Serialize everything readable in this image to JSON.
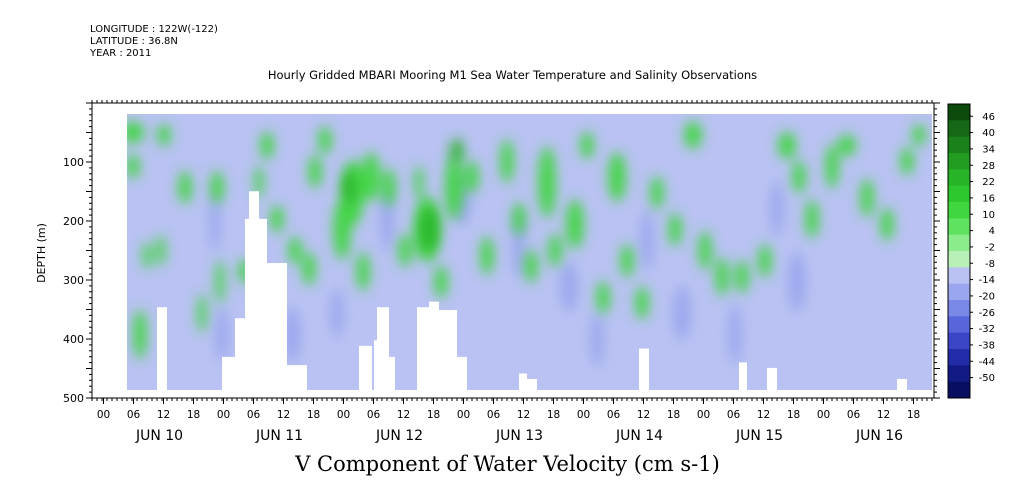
{
  "header": {
    "longitude": "LONGITUDE : 122W(-122)",
    "latitude": "LATITUDE : 36.8N",
    "year": "YEAR : 2011"
  },
  "chart_data": {
    "type": "heatmap",
    "title": "Hourly Gridded MBARI Mooring M1 Sea Water Temperature and Salinity Observations",
    "xlabel": "V Component of Water Velocity (cm s-1)",
    "ylabel": "DEPTH (m)",
    "ylim": [
      500,
      0
    ],
    "y_inverted": true,
    "yticks": [
      100,
      200,
      300,
      400,
      500
    ],
    "x_hour_ticks": [
      "00",
      "06",
      "12",
      "18",
      "00",
      "06",
      "12",
      "18",
      "00",
      "06",
      "12",
      "18",
      "00",
      "06",
      "12",
      "18",
      "00",
      "06",
      "12",
      "18",
      "00",
      "06",
      "12",
      "18",
      "00",
      "06",
      "12",
      "18"
    ],
    "x_day_labels": [
      "JUN 10",
      "JUN 11",
      "JUN 12",
      "JUN 13",
      "JUN 14",
      "JUN 15",
      "JUN 16"
    ],
    "colorbar": {
      "labels": [
        "46",
        "40",
        "34",
        "28",
        "22",
        "16",
        "10",
        "4",
        "-2",
        "-8",
        "-14",
        "-20",
        "-26",
        "-32",
        "-38",
        "-44",
        "-50"
      ],
      "colors": [
        "#0d4a0d",
        "#156815",
        "#1b821b",
        "#219c21",
        "#27b427",
        "#2dc82d",
        "#3fd63f",
        "#5fe25f",
        "#8aec8a",
        "#b8f0b8",
        "#b9c2f2",
        "#9aa6ee",
        "#7a88e8",
        "#5866dc",
        "#3a46c6",
        "#222ca8",
        "#121a86",
        "#080e60"
      ]
    },
    "layers": [
      {
        "name": "bg",
        "value": -10
      },
      {
        "name": "b",
        "value": -18,
        "blobs": [
          [
            88,
            205,
            2.5,
            55
          ],
          [
            95,
            420,
            3,
            50
          ],
          [
            130,
            300,
            2,
            40
          ],
          [
            165,
            420,
            4,
            50
          ],
          [
            210,
            380,
            3,
            45
          ],
          [
            260,
            200,
            3,
            60
          ],
          [
            310,
            430,
            3,
            45
          ],
          [
            335,
            160,
            4,
            50
          ],
          [
            392,
            250,
            3,
            60
          ],
          [
            442,
            330,
            4,
            45
          ],
          [
            470,
            430,
            3,
            50
          ],
          [
            520,
            240,
            3,
            55
          ],
          [
            555,
            380,
            4,
            50
          ],
          [
            608,
            420,
            3,
            55
          ],
          [
            650,
            180,
            3,
            50
          ],
          [
            670,
            320,
            4,
            55
          ]
        ]
      },
      {
        "name": "g",
        "value": 12,
        "blobs": [
          [
            6,
            35,
            5,
            20
          ],
          [
            6,
            100,
            3,
            22
          ],
          [
            20,
            270,
            2,
            25
          ],
          [
            13,
            420,
            3,
            45
          ],
          [
            37,
            40,
            3,
            20
          ],
          [
            34,
            260,
            2,
            28
          ],
          [
            58,
            140,
            3,
            30
          ],
          [
            75,
            380,
            2,
            35
          ],
          [
            90,
            140,
            3,
            30
          ],
          [
            93,
            320,
            2,
            40
          ],
          [
            118,
            300,
            3,
            22
          ],
          [
            132,
            130,
            2,
            30
          ],
          [
            140,
            60,
            3,
            25
          ],
          [
            150,
            200,
            3,
            25
          ],
          [
            168,
            260,
            3,
            25
          ],
          [
            182,
            295,
            3,
            30
          ],
          [
            188,
            110,
            3,
            30
          ],
          [
            198,
            50,
            3,
            25
          ],
          [
            215,
            220,
            4,
            55
          ],
          [
            226,
            150,
            5,
            60
          ],
          [
            236,
            300,
            3,
            35
          ],
          [
            244,
            120,
            4,
            45
          ],
          [
            262,
            140,
            3,
            35
          ],
          [
            278,
            260,
            3,
            30
          ],
          [
            292,
            130,
            2,
            30
          ],
          [
            300,
            220,
            6,
            60
          ],
          [
            314,
            320,
            3,
            30
          ],
          [
            327,
            140,
            4,
            60
          ],
          [
            345,
            120,
            3,
            30
          ],
          [
            360,
            270,
            3,
            35
          ],
          [
            380,
            90,
            3,
            40
          ],
          [
            392,
            200,
            3,
            30
          ],
          [
            404,
            290,
            3,
            30
          ],
          [
            420,
            130,
            4,
            65
          ],
          [
            428,
            260,
            3,
            30
          ],
          [
            448,
            210,
            4,
            45
          ],
          [
            460,
            60,
            3,
            25
          ],
          [
            476,
            350,
            3,
            30
          ],
          [
            490,
            120,
            4,
            45
          ],
          [
            500,
            280,
            3,
            30
          ],
          [
            515,
            360,
            3,
            30
          ],
          [
            530,
            150,
            3,
            30
          ],
          [
            548,
            220,
            3,
            30
          ],
          [
            566,
            40,
            4,
            25
          ],
          [
            578,
            260,
            3,
            35
          ],
          [
            595,
            310,
            3,
            35
          ],
          [
            615,
            310,
            3,
            30
          ],
          [
            638,
            280,
            3,
            30
          ],
          [
            660,
            60,
            4,
            25
          ],
          [
            672,
            120,
            3,
            30
          ],
          [
            685,
            200,
            3,
            35
          ],
          [
            705,
            100,
            3,
            40
          ],
          [
            720,
            60,
            4,
            20
          ],
          [
            740,
            160,
            3,
            35
          ],
          [
            760,
            210,
            3,
            30
          ],
          [
            780,
            90,
            3,
            25
          ],
          [
            792,
            40,
            3,
            20
          ]
        ]
      },
      {
        "name": "G",
        "value": 22,
        "blobs": [
          [
            222,
            140,
            3,
            30
          ],
          [
            302,
            220,
            4,
            40
          ],
          [
            330,
            70,
            3,
            22
          ]
        ]
      },
      {
        "name": "w",
        "value": null,
        "rects": [
          [
            30,
            350,
            40,
            500
          ],
          [
            122,
            140,
            132,
            210
          ],
          [
            118,
            190,
            140,
            500
          ],
          [
            133,
            270,
            160,
            500
          ],
          [
            140,
            390,
            160,
            500
          ],
          [
            108,
            370,
            130,
            500
          ],
          [
            95,
            440,
            140,
            500
          ],
          [
            160,
            455,
            180,
            500
          ],
          [
            232,
            420,
            245,
            500
          ],
          [
            247,
            410,
            262,
            500
          ],
          [
            250,
            350,
            262,
            500
          ],
          [
            262,
            440,
            268,
            500
          ],
          [
            290,
            350,
            302,
            500
          ],
          [
            302,
            340,
            312,
            500
          ],
          [
            312,
            355,
            330,
            500
          ],
          [
            330,
            440,
            340,
            500
          ],
          [
            392,
            470,
            400,
            500
          ],
          [
            400,
            480,
            410,
            500
          ],
          [
            512,
            425,
            522,
            500
          ],
          [
            612,
            450,
            620,
            500
          ],
          [
            640,
            460,
            650,
            500
          ],
          [
            770,
            480,
            780,
            500
          ]
        ]
      }
    ]
  }
}
